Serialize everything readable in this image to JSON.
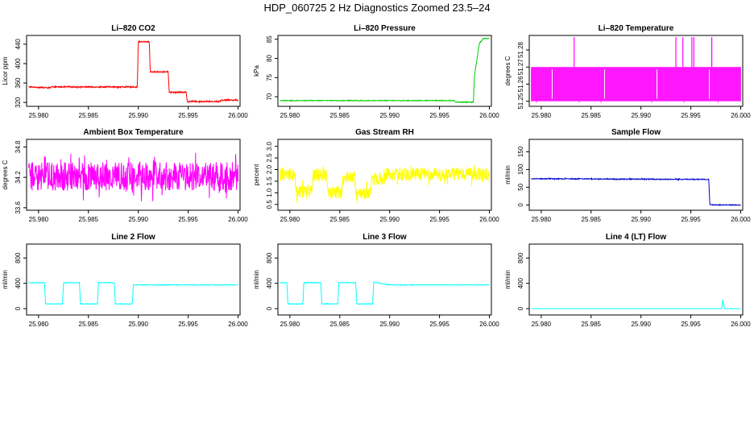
{
  "figure": {
    "title": "HDP_060725  2 Hz Diagnostics Zoomed 23.5–24"
  },
  "chart_data": [
    {
      "type": "line",
      "title": "Li–820 CO2",
      "ylabel": "Licor ppm",
      "xlim": [
        25.9788,
        26.0002
      ],
      "ylim": [
        312,
        458
      ],
      "xticks": [
        25.98,
        25.985,
        25.99,
        25.995,
        26.0
      ],
      "xticklabels": [
        "25.980",
        "25.985",
        "25.990",
        "25.995",
        "26.000"
      ],
      "yticks": [
        320,
        360,
        400,
        440
      ],
      "yticklabels": [
        "320",
        "360",
        "400",
        "440"
      ],
      "color": "#ff0000",
      "series": [
        {
          "x": [
            25.979,
            25.9812,
            25.9813,
            25.9899,
            25.99,
            25.9911,
            25.9912,
            25.993,
            25.9931,
            25.9948,
            25.9949,
            25.9969,
            25.997,
            25.9982,
            25.9983,
            26.0
          ],
          "y": [
            352,
            350,
            352,
            352,
            445,
            445,
            383,
            383,
            341,
            341,
            322,
            322,
            322,
            322,
            325,
            325
          ],
          "noise": 1.2
        }
      ]
    },
    {
      "type": "line",
      "title": "Li–820 Pressure",
      "ylabel": "kPa",
      "xlim": [
        25.9788,
        26.0002
      ],
      "ylim": [
        67.5,
        86
      ],
      "xticks": [
        25.98,
        25.985,
        25.99,
        25.995,
        26.0
      ],
      "xticklabels": [
        "25.980",
        "25.985",
        "25.990",
        "25.995",
        "26.000"
      ],
      "yticks": [
        70,
        75,
        80,
        85
      ],
      "yticklabels": [
        "70",
        "75",
        "80",
        "85"
      ],
      "color": "#00cc00",
      "series": [
        {
          "x": [
            25.979,
            25.9965,
            25.9966,
            25.9984,
            25.9985,
            25.999,
            25.9994,
            26.0
          ],
          "y": [
            69.0,
            69.0,
            68.6,
            68.6,
            75.5,
            84.0,
            85.2,
            85.2
          ],
          "noise": 0.08
        }
      ]
    },
    {
      "type": "line",
      "title": "Li–820 Temperature",
      "ylabel": "degrees C",
      "xlim": [
        25.9788,
        26.0002
      ],
      "ylim": [
        51.247,
        51.2885
      ],
      "xticks": [
        25.98,
        25.985,
        25.99,
        25.995,
        26.0
      ],
      "xticklabels": [
        "25.980",
        "25.985",
        "25.990",
        "25.995",
        "26.000"
      ],
      "yticks": [
        51.25,
        51.26,
        51.27,
        51.28
      ],
      "yticklabels": [
        "51.25",
        "51.26",
        "51.27",
        "51.28"
      ],
      "color": "#ff00ff",
      "series": [
        {
          "x": [
            25.979,
            26.0
          ],
          "y": [
            51.25,
            51.27
          ],
          "mode": "band",
          "spikes": [
            25.9833,
            25.9935,
            25.9942,
            25.9951,
            25.9953,
            25.9971
          ],
          "spike_value": 51.2875
        }
      ]
    },
    {
      "type": "line",
      "title": "Ambient Box Temperature",
      "ylabel": "degrees C",
      "xlim": [
        25.9788,
        26.0002
      ],
      "ylim": [
        33.55,
        34.95
      ],
      "xticks": [
        25.98,
        25.985,
        25.99,
        25.995,
        26.0
      ],
      "xticklabels": [
        "25.980",
        "25.985",
        "25.990",
        "25.995",
        "26.000"
      ],
      "yticks": [
        33.6,
        34.2,
        34.8
      ],
      "yticklabels": [
        "33.6",
        "34.2",
        "34.8"
      ],
      "color": "#ff00ff",
      "series": [
        {
          "x": [
            25.979,
            26.0
          ],
          "y": [
            34.22,
            34.22
          ],
          "noise": 0.28
        }
      ]
    },
    {
      "type": "line",
      "title": "Gas Stream RH",
      "ylabel": "percent",
      "xlim": [
        25.9788,
        26.0002
      ],
      "ylim": [
        0.25,
        3.3
      ],
      "xticks": [
        25.98,
        25.985,
        25.99,
        25.995,
        26.0
      ],
      "xticklabels": [
        "25.980",
        "25.985",
        "25.990",
        "25.995",
        "26.000"
      ],
      "yticks": [
        0.5,
        1.0,
        1.5,
        2.0,
        2.5,
        3.0
      ],
      "yticklabels": [
        "0.5",
        "1.0",
        "1.5",
        "2.0",
        "2.5",
        "3.0"
      ],
      "color": "#ffff00",
      "series": [
        {
          "x": [
            25.979,
            25.9805,
            25.9806,
            25.9822,
            25.9823,
            25.9837,
            25.9838,
            25.9852,
            25.9853,
            25.9865,
            25.9866,
            25.9881,
            25.9882,
            25.9895,
            25.9896,
            26.0
          ],
          "y": [
            1.8,
            1.8,
            1.05,
            1.05,
            1.75,
            1.75,
            1.0,
            1.0,
            1.65,
            1.65,
            1.0,
            1.0,
            1.6,
            1.6,
            1.8,
            1.8
          ],
          "noise": 0.28
        }
      ]
    },
    {
      "type": "line",
      "title": "Sample Flow",
      "ylabel": "ml/min",
      "xlim": [
        25.9788,
        26.0002
      ],
      "ylim": [
        -15,
        185
      ],
      "xticks": [
        25.98,
        25.985,
        25.99,
        25.995,
        26.0
      ],
      "xticklabels": [
        "25.980",
        "25.985",
        "25.990",
        "25.995",
        "26.000"
      ],
      "yticks": [
        0,
        50,
        100,
        150
      ],
      "yticklabels": [
        "0",
        "50",
        "100",
        "150"
      ],
      "color": "#0000cc",
      "series": [
        {
          "x": [
            25.979,
            25.9968,
            25.9969,
            26.0
          ],
          "y": [
            74,
            72,
            0,
            0
          ],
          "noise": 1.2
        }
      ]
    },
    {
      "type": "line",
      "title": "Line 2 Flow",
      "ylabel": "ml/min",
      "xlim": [
        25.9788,
        26.0002
      ],
      "ylim": [
        -100,
        1020
      ],
      "xticks": [
        25.98,
        25.985,
        25.99,
        25.995,
        26.0
      ],
      "xticklabels": [
        "25.980",
        "25.985",
        "25.990",
        "25.995",
        "26.000"
      ],
      "yticks": [
        0,
        400,
        800
      ],
      "yticklabels": [
        "0",
        "400",
        "800"
      ],
      "color": "#00ffff",
      "series": [
        {
          "x": [
            25.979,
            25.9806,
            25.9807,
            25.9824,
            25.9825,
            25.9841,
            25.9842,
            25.9859,
            25.986,
            25.9876,
            25.9877,
            25.9894,
            25.9895,
            26.0
          ],
          "y": [
            410,
            410,
            75,
            75,
            410,
            410,
            75,
            75,
            410,
            410,
            75,
            75,
            375,
            375
          ],
          "noise": 4
        }
      ]
    },
    {
      "type": "line",
      "title": "Line 3 Flow",
      "ylabel": "ml/min",
      "xlim": [
        25.9788,
        26.0002
      ],
      "ylim": [
        -100,
        1020
      ],
      "xticks": [
        25.98,
        25.985,
        25.99,
        25.995,
        26.0
      ],
      "xticklabels": [
        "25.980",
        "25.985",
        "25.990",
        "25.995",
        "26.000"
      ],
      "yticks": [
        0,
        400,
        800
      ],
      "yticklabels": [
        "0",
        "400",
        "800"
      ],
      "color": "#00ffff",
      "series": [
        {
          "x": [
            25.979,
            25.9797,
            25.9798,
            25.9813,
            25.9814,
            25.9831,
            25.9832,
            25.9848,
            25.9849,
            25.9866,
            25.9867,
            25.9883,
            25.9884,
            25.99,
            26.0
          ],
          "y": [
            410,
            410,
            75,
            75,
            410,
            410,
            75,
            75,
            410,
            410,
            75,
            75,
            420,
            375,
            375
          ],
          "noise": 4
        }
      ]
    },
    {
      "type": "line",
      "title": "Line 4 (LT) Flow",
      "ylabel": "ml/min",
      "xlim": [
        25.9788,
        26.0002
      ],
      "ylim": [
        -100,
        1020
      ],
      "xticks": [
        25.98,
        25.985,
        25.99,
        25.995,
        26.0
      ],
      "xticklabels": [
        "25.980",
        "25.985",
        "25.990",
        "25.995",
        "26.000"
      ],
      "yticks": [
        0,
        400,
        800
      ],
      "yticklabels": [
        "0",
        "400",
        "800"
      ],
      "color": "#00ffff",
      "series": [
        {
          "x": [
            25.979,
            25.9981,
            25.9982,
            25.9983,
            25.9984,
            26.0
          ],
          "y": [
            0,
            0,
            140,
            40,
            0,
            0
          ],
          "noise": 0
        }
      ]
    }
  ]
}
